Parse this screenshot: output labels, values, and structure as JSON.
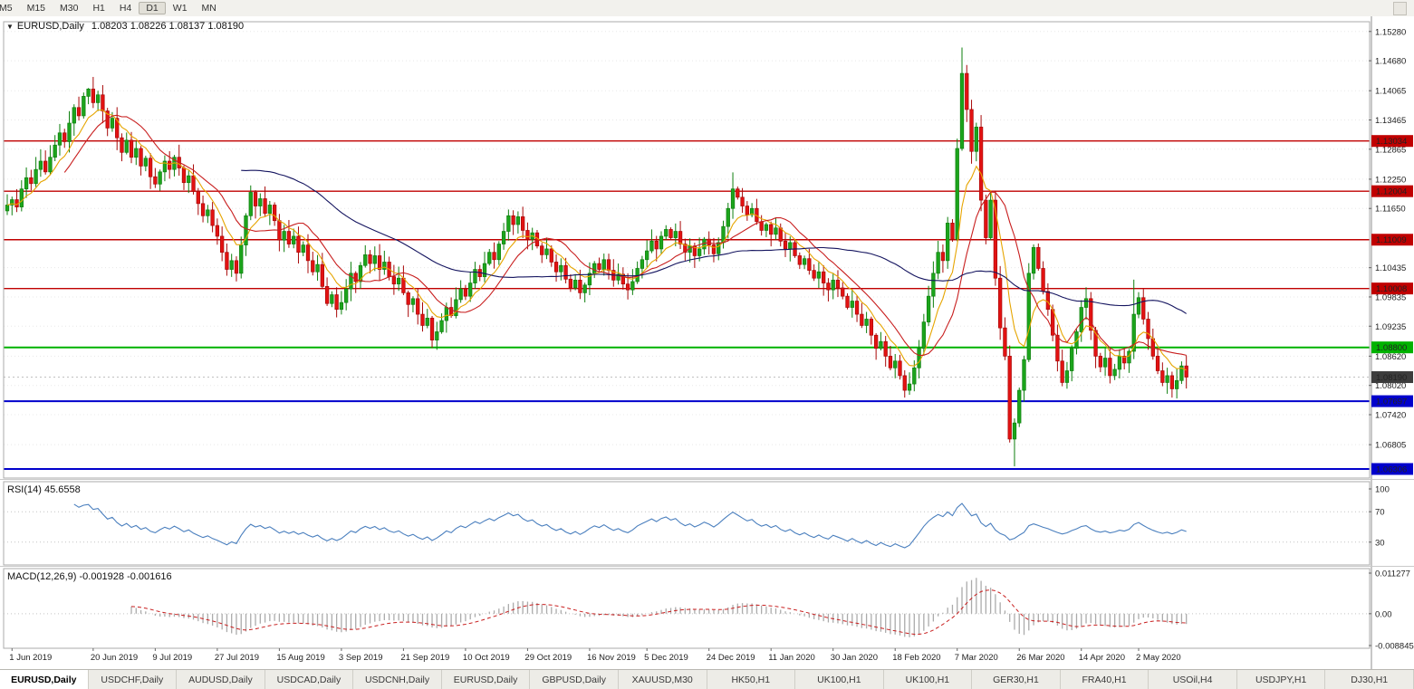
{
  "toolbar": {
    "timeframes": [
      "M5",
      "M15",
      "M30",
      "H1",
      "H4",
      "D1",
      "W1",
      "MN"
    ],
    "active": "D1"
  },
  "header": {
    "symbol": "EURUSD,Daily",
    "ohlc": "1.08203 1.08226 1.08137 1.08190"
  },
  "rsi_header": {
    "label": "RSI(14)",
    "value": "45.6558"
  },
  "macd_header": {
    "label": "MACD(12,26,9)",
    "value": "-0.001928 -0.001616"
  },
  "tabbar": {
    "active_index": 0,
    "tabs": [
      "EURUSD,Daily",
      "USDCHF,Daily",
      "AUDUSD,Daily",
      "USDCAD,Daily",
      "USDCNH,Daily",
      "EURUSD,Daily",
      "GBPUSD,Daily",
      "XAUUSD,M30",
      "HK50,H1",
      "UK100,H1",
      "UK100,H1",
      "GER30,H1",
      "FRA40,H1",
      "USOil,H4",
      "USDJPY,H1",
      "DJ30,H1"
    ]
  },
  "chart_data": {
    "type": "candlestick",
    "symbol": "EURUSD",
    "timeframe": "Daily",
    "title": "EURUSD,Daily",
    "current_ohlc": {
      "open": 1.08203,
      "high": 1.08226,
      "low": 1.08137,
      "close": 1.0819
    },
    "price_axis": {
      "max": 1.1548,
      "min": 1.0612,
      "labels": [
        "1.15280",
        "1.14680",
        "1.14065",
        "1.13465",
        "1.12865",
        "1.12250",
        "1.11650",
        "1.10435",
        "1.09835",
        "1.09235",
        "1.08620",
        "1.08020",
        "1.07420",
        "1.06805"
      ]
    },
    "first_open": 1.116,
    "closes": [
      1.1172,
      1.1183,
      1.1168,
      1.1205,
      1.1228,
      1.1216,
      1.1245,
      1.1262,
      1.124,
      1.127,
      1.1295,
      1.132,
      1.1302,
      1.134,
      1.1372,
      1.1355,
      1.1395,
      1.141,
      1.1382,
      1.1398,
      1.1365,
      1.133,
      1.135,
      1.131,
      1.128,
      1.1305,
      1.127,
      1.1288,
      1.1252,
      1.1268,
      1.123,
      1.1215,
      1.124,
      1.1262,
      1.1245,
      1.127,
      1.1248,
      1.1218,
      1.1232,
      1.12,
      1.1175,
      1.115,
      1.1162,
      1.113,
      1.1108,
      1.1075,
      1.104,
      1.1058,
      1.1032,
      1.109,
      1.115,
      1.1198,
      1.117,
      1.1185,
      1.1155,
      1.1172,
      1.114,
      1.11,
      1.1118,
      1.1092,
      1.1108,
      1.1075,
      1.109,
      1.1058,
      1.1035,
      1.105,
      1.1005,
      1.097,
      1.0988,
      1.0958,
      1.0972,
      1.1,
      1.1032,
      1.1015,
      1.1048,
      1.107,
      1.1052,
      1.1068,
      1.104,
      1.1055,
      1.1025,
      1.101,
      1.1022,
      1.0992,
      1.0968,
      1.098,
      1.0948,
      1.0925,
      1.094,
      1.0895,
      1.0912,
      1.0935,
      1.0962,
      1.0945,
      1.0978,
      1.1,
      1.0985,
      1.1012,
      1.104,
      1.1025,
      1.1052,
      1.1075,
      1.106,
      1.1092,
      1.1118,
      1.115,
      1.1132,
      1.1148,
      1.112,
      1.1102,
      1.1115,
      1.1088,
      1.107,
      1.1082,
      1.1055,
      1.1035,
      1.1048,
      1.102,
      1.1002,
      1.1018,
      1.0992,
      1.1008,
      1.1032,
      1.1052,
      1.104,
      1.106,
      1.1038,
      1.1018,
      1.103,
      1.101,
      1.0998,
      1.1015,
      1.1042,
      1.106,
      1.1078,
      1.1098,
      1.1082,
      1.1108,
      1.1122,
      1.1105,
      1.1118,
      1.1092,
      1.1075,
      1.1088,
      1.1068,
      1.1082,
      1.1102,
      1.109,
      1.1072,
      1.1095,
      1.1128,
      1.1165,
      1.1205,
      1.1188,
      1.117,
      1.1152,
      1.1165,
      1.1138,
      1.112,
      1.1132,
      1.1112,
      1.1125,
      1.1098,
      1.1082,
      1.1095,
      1.1068,
      1.105,
      1.1062,
      1.1038,
      1.1022,
      1.1035,
      1.1012,
      1.0998,
      1.1018,
      1.1002,
      1.0985,
      1.0962,
      1.0975,
      1.0948,
      1.0925,
      1.0938,
      1.0905,
      1.0878,
      1.0892,
      1.0862,
      1.0838,
      1.0852,
      1.0822,
      1.0792,
      1.0805,
      1.0838,
      1.0878,
      1.0932,
      1.0985,
      1.1032,
      1.1075,
      1.1058,
      1.1135,
      1.1102,
      1.1288,
      1.1442,
      1.1368,
      1.1282,
      1.1332,
      1.1182,
      1.1105,
      1.1182,
      1.1022,
      1.092,
      1.0862,
      1.0692,
      1.0725,
      1.0792,
      1.0855,
      1.1032,
      1.1085,
      1.1042,
      1.0995,
      1.0958,
      1.0905,
      1.0852,
      1.0808,
      1.0832,
      1.0878,
      1.0912,
      1.0962,
      1.098,
      1.0915,
      1.0862,
      1.084,
      1.0858,
      1.0822,
      1.0835,
      1.0862,
      1.0848,
      1.0872,
      1.0948,
      1.0982,
      1.0938,
      1.0898,
      1.0862,
      1.0832,
      1.0808,
      1.0822,
      1.0795,
      1.0812,
      1.0842,
      1.0819
    ],
    "extremes": [
      {
        "i": 17,
        "high": 1.1412
      },
      {
        "i": 46,
        "low": 1.1027
      },
      {
        "i": 89,
        "low": 1.0879
      },
      {
        "i": 152,
        "high": 1.1239
      },
      {
        "i": 188,
        "low": 1.0777
      },
      {
        "i": 200,
        "high": 1.1495
      },
      {
        "i": 211,
        "low": 1.0636
      },
      {
        "i": 236,
        "high": 1.1019
      }
    ],
    "levels": [
      {
        "price": 1.13034,
        "label": "1.13034",
        "color": "#C00000",
        "width": 1.4
      },
      {
        "price": 1.12004,
        "label": "1.12004",
        "color": "#C00000",
        "width": 1.4
      },
      {
        "price": 1.11009,
        "label": "1.11009",
        "color": "#C00000",
        "width": 1.4
      },
      {
        "price": 1.10008,
        "label": "1.10008",
        "color": "#C00000",
        "width": 1.4
      },
      {
        "price": 1.088,
        "label": "1.08800",
        "color": "#00B200",
        "width": 2
      },
      {
        "price": 1.07697,
        "label": "1.07697",
        "color": "#0000CC",
        "width": 2
      },
      {
        "price": 1.06306,
        "label": "1.06306",
        "color": "#0000CC",
        "width": 2
      }
    ],
    "current_price": {
      "price": 1.0819,
      "label": "1.08190",
      "color": "#3C3C3C"
    },
    "moving_averages": [
      {
        "kind": "ema",
        "period": 8,
        "color": "#E6A500"
      },
      {
        "kind": "sma",
        "period": 13,
        "color": "#C81E1E"
      },
      {
        "kind": "sma",
        "period": 50,
        "color": "#14145F"
      }
    ],
    "colors": {
      "up_fill": "#1CA51C",
      "up_border": "#0E7F0E",
      "down_fill": "#E31212",
      "down_border": "#A80808",
      "grid": "#E8E8E8",
      "frame": "#ABABAB"
    },
    "date_labels": [
      {
        "i": 1,
        "label": "1 Jun 2019"
      },
      {
        "i": 18,
        "label": "20 Jun 2019"
      },
      {
        "i": 31,
        "label": "9 Jul 2019"
      },
      {
        "i": 44,
        "label": "27 Jul 2019"
      },
      {
        "i": 57,
        "label": "15 Aug 2019"
      },
      {
        "i": 70,
        "label": "3 Sep 2019"
      },
      {
        "i": 83,
        "label": "21 Sep 2019"
      },
      {
        "i": 96,
        "label": "10 Oct 2019"
      },
      {
        "i": 109,
        "label": "29 Oct 2019"
      },
      {
        "i": 122,
        "label": "16 Nov 2019"
      },
      {
        "i": 134,
        "label": "5 Dec 2019"
      },
      {
        "i": 147,
        "label": "24 Dec 2019"
      },
      {
        "i": 160,
        "label": "11 Jan 2020"
      },
      {
        "i": 173,
        "label": "30 Jan 2020"
      },
      {
        "i": 186,
        "label": "18 Feb 2020"
      },
      {
        "i": 199,
        "label": "7 Mar 2020"
      },
      {
        "i": 212,
        "label": "26 Mar 2020"
      },
      {
        "i": 225,
        "label": "14 Apr 2020"
      },
      {
        "i": 237,
        "label": "2 May 2020"
      }
    ],
    "rsi": {
      "label": "RSI(14)",
      "value": 45.6558,
      "period": 14,
      "color": "#4A7FBE",
      "ticks": [
        {
          "v": 100,
          "label": "100"
        },
        {
          "v": 70,
          "label": "70"
        },
        {
          "v": 30,
          "label": "30"
        }
      ],
      "level_lines": [
        70,
        30
      ]
    },
    "macd": {
      "label": "MACD(12,26,9)",
      "value": -0.001928,
      "signal_value": -0.001616,
      "fast": 12,
      "slow": 26,
      "signal": 9,
      "max": 0.011277,
      "min": -0.008845,
      "hist_color": "#ABABAB",
      "signal_color": "#C81E1E",
      "ticks": [
        {
          "v": 0.011277,
          "label": "0.011277"
        },
        {
          "v": 0,
          "label": "0.00"
        },
        {
          "v": -0.008845,
          "label": "-0.008845"
        }
      ]
    }
  }
}
